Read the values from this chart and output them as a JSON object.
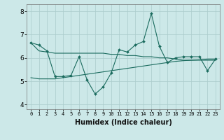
{
  "xlabel": "Humidex (Indice chaleur)",
  "xlim": [
    -0.5,
    23.5
  ],
  "ylim": [
    3.8,
    8.3
  ],
  "yticks": [
    4,
    5,
    6,
    7,
    8
  ],
  "xticks": [
    0,
    1,
    2,
    3,
    4,
    5,
    6,
    7,
    8,
    9,
    10,
    11,
    12,
    13,
    14,
    15,
    16,
    17,
    18,
    19,
    20,
    21,
    22,
    23
  ],
  "bg_color": "#cce8e8",
  "grid_color": "#aacccc",
  "line_color": "#1a6b5e",
  "line1_x": [
    0,
    1,
    2,
    3,
    4,
    5,
    6,
    7,
    8,
    9,
    10,
    11,
    12,
    13,
    14,
    15,
    16,
    17,
    18,
    19,
    20,
    21,
    22,
    23
  ],
  "line1_y": [
    6.65,
    6.55,
    6.3,
    5.2,
    5.2,
    5.25,
    6.05,
    5.05,
    4.45,
    4.75,
    5.35,
    6.35,
    6.25,
    6.55,
    6.7,
    7.9,
    6.5,
    5.8,
    6.0,
    6.05,
    6.05,
    6.05,
    5.45,
    5.95
  ],
  "line2_x": [
    0,
    1,
    2,
    3,
    4,
    5,
    6,
    7,
    8,
    9,
    10,
    11,
    12,
    13,
    14,
    15,
    16,
    17,
    18,
    19,
    20,
    21,
    22,
    23
  ],
  "line2_y": [
    6.65,
    6.3,
    6.25,
    6.2,
    6.2,
    6.2,
    6.2,
    6.2,
    6.2,
    6.2,
    6.15,
    6.15,
    6.1,
    6.1,
    6.05,
    6.05,
    6.0,
    6.0,
    5.95,
    5.9,
    5.9,
    5.9,
    5.9,
    5.9
  ],
  "line3_x": [
    0,
    1,
    2,
    3,
    4,
    5,
    6,
    7,
    8,
    9,
    10,
    11,
    12,
    13,
    14,
    15,
    16,
    17,
    18,
    19,
    20,
    21,
    22,
    23
  ],
  "line3_y": [
    5.15,
    5.1,
    5.1,
    5.1,
    5.15,
    5.2,
    5.25,
    5.3,
    5.35,
    5.4,
    5.45,
    5.5,
    5.55,
    5.6,
    5.65,
    5.7,
    5.75,
    5.8,
    5.85,
    5.88,
    5.9,
    5.92,
    5.95,
    5.95
  ]
}
